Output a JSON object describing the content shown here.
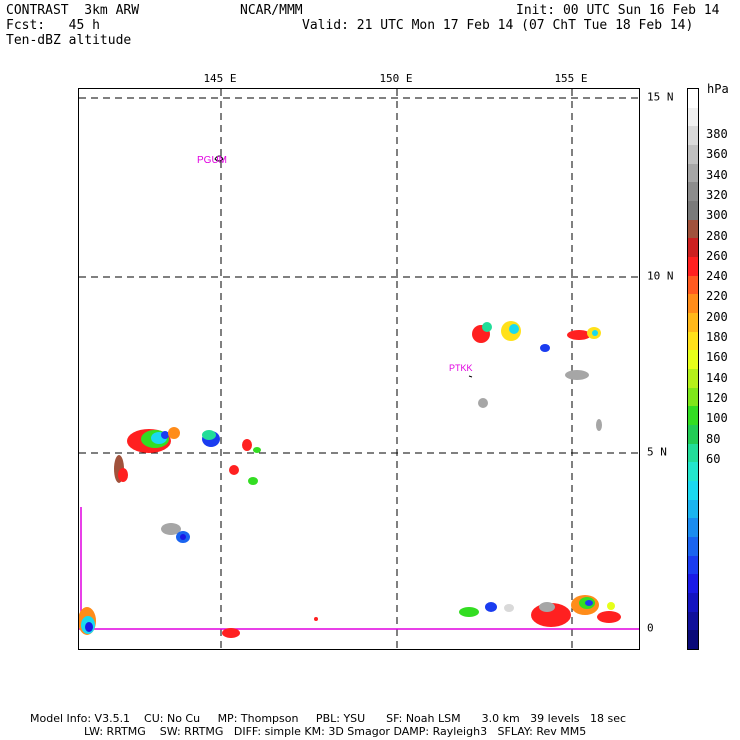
{
  "header": {
    "title_left": "CONTRAST  3km ARW",
    "fcst": "Fcst:   45 h",
    "field": "Ten-dBZ altitude",
    "center": "NCAR/MMM",
    "init": "Init: 00 UTC Sun 16 Feb 14",
    "valid": "Valid: 21 UTC Mon 17 Feb 14 (07 ChT Tue 18 Feb 14)"
  },
  "map": {
    "lon_labels": [
      "145 E",
      "150 E",
      "155 E"
    ],
    "lat_labels": [
      "15 N",
      "10 N",
      "5 N",
      "0"
    ],
    "stations": [
      {
        "name": "PGUM"
      },
      {
        "name": "PTKK"
      }
    ],
    "lon_range": [
      141,
      157
    ],
    "lat_range": [
      -0.6,
      15.4
    ],
    "grid_lons": [
      145,
      150,
      155
    ],
    "grid_lats": [
      15,
      10,
      5
    ],
    "boundary_color": "#e000e0"
  },
  "colorbar": {
    "unit": "hPa",
    "labels": [
      "380",
      "360",
      "340",
      "320",
      "300",
      "280",
      "260",
      "240",
      "220",
      "200",
      "180",
      "160",
      "140",
      "120",
      "100",
      "80",
      "60"
    ],
    "colors": [
      "#ffffff",
      "#f0f0f0",
      "#d9d9d9",
      "#c0c0c0",
      "#a6a6a6",
      "#8c8c8c",
      "#7a7a7a",
      "#a0523c",
      "#cc2020",
      "#ff2020",
      "#ff5a20",
      "#ff8c1a",
      "#ffb81a",
      "#ffe11a",
      "#e6ff1a",
      "#b4f01a",
      "#7fe61a",
      "#33dd22",
      "#22cc55",
      "#22dd99",
      "#22e6cc",
      "#1ad9f0",
      "#1ab4f0",
      "#1a8cf0",
      "#1a64f0",
      "#1a3cf0",
      "#1a1ae6",
      "#1414c0",
      "#10109a",
      "#0a0a78"
    ]
  },
  "footer": {
    "line1": "Model Info: V3.5.1    CU: No Cu     MP: Thompson     PBL: YSU      SF: Noah LSM      3.0 km   39 levels   18 sec",
    "line2": "LW: RRTMG    SW: RRTMG   DIFF: simple KM: 3D Smagor DAMP: Rayleigh3   SFLAY: Rev MM5"
  }
}
